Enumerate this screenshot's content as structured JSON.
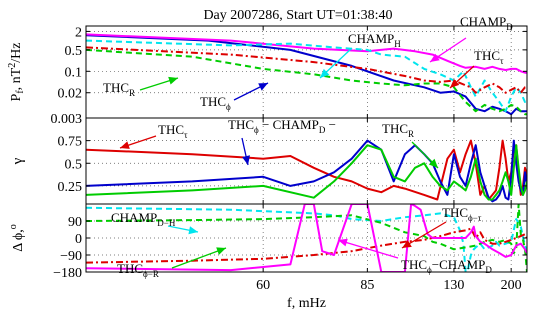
{
  "title": "Day 2007286, Start UT=01:38:40",
  "colors": {
    "blue": "#0000cc",
    "red": "#dd0000",
    "green": "#00cc00",
    "magenta": "#ff00ff",
    "cyan": "#00e5ee",
    "black": "#000000"
  },
  "chart_data": [
    {
      "type": "line",
      "panel": "power",
      "xlabel": "",
      "ylabel": "P_f, nT^2/Hz",
      "ylabel_main": "P",
      "ylabel_sub": "f",
      "ylabel_rest": ", nT",
      "ylabel_sup": "2",
      "ylabel_end": "/Hz",
      "yscale": "log",
      "xlim": [
        40,
        235
      ],
      "ylim": [
        0.003,
        3
      ],
      "yticks": [
        {
          "v": 2,
          "label": "2"
        },
        {
          "v": 0.5,
          "label": "0.5"
        },
        {
          "v": 0.1,
          "label": "0.1"
        },
        {
          "v": 0.02,
          "label": "0.02"
        },
        {
          "v": 0.003,
          "label": "0.003"
        }
      ],
      "grid": true,
      "series": [
        {
          "color": "blue",
          "dash": "solid",
          "x": [
            40,
            52,
            65,
            80,
            95,
            110,
            120,
            130,
            140,
            150,
            160,
            170,
            180,
            190,
            200,
            210,
            220,
            230,
            235
          ],
          "y": [
            1.5,
            1.0,
            0.5,
            0.15,
            0.05,
            0.03,
            0.02,
            0.022,
            0.015,
            0.006,
            0.005,
            0.007,
            0.006,
            0.005,
            0.004,
            0.006,
            0.005,
            0.005,
            0.005
          ]
        },
        {
          "color": "magenta",
          "dash": "solid",
          "x": [
            40,
            55,
            70,
            85,
            95,
            105,
            115,
            125,
            135,
            140,
            150,
            160,
            170,
            180,
            190,
            200,
            210,
            220,
            230,
            235
          ],
          "y": [
            1.6,
            1.0,
            0.55,
            0.45,
            0.55,
            0.45,
            0.35,
            0.22,
            0.15,
            0.13,
            0.14,
            0.12,
            0.14,
            0.12,
            0.11,
            0.12,
            0.12,
            0.1,
            0.09,
            0.09
          ]
        },
        {
          "color": "cyan",
          "dash": "dash",
          "x": [
            40,
            55,
            65,
            75,
            85,
            90,
            100,
            110,
            120,
            130,
            138,
            145,
            150,
            160,
            170,
            180,
            190,
            200,
            210,
            220,
            230,
            235
          ],
          "y": [
            1.0,
            0.7,
            0.8,
            0.6,
            0.5,
            0.35,
            0.3,
            0.12,
            0.08,
            0.05,
            0.1,
            0.03,
            0.015,
            0.05,
            0.02,
            0.01,
            0.005,
            0.015,
            0.03,
            0.02,
            0.01,
            0.01
          ]
        },
        {
          "color": "green",
          "dash": "dash",
          "x": [
            40,
            50,
            60,
            70,
            80,
            90,
            100,
            110,
            120,
            130,
            140,
            150,
            160,
            170,
            180,
            190,
            200,
            210,
            220,
            230,
            235
          ],
          "y": [
            0.5,
            0.3,
            0.12,
            0.08,
            0.05,
            0.04,
            0.035,
            0.04,
            0.04,
            0.03,
            0.01,
            0.005,
            0.008,
            0.006,
            0.005,
            0.006,
            0.008,
            0.007,
            0.005,
            0.004,
            0.004
          ]
        },
        {
          "color": "red",
          "dash": "dashdot",
          "x": [
            40,
            55,
            70,
            85,
            100,
            110,
            120,
            130,
            140,
            145,
            150,
            160,
            170,
            180,
            190,
            200,
            210,
            220,
            230,
            235
          ],
          "y": [
            0.6,
            0.35,
            0.2,
            0.12,
            0.07,
            0.05,
            0.045,
            0.05,
            0.035,
            0.03,
            0.02,
            0.03,
            0.04,
            0.03,
            0.02,
            0.025,
            0.03,
            0.02,
            0.03,
            0.03
          ]
        }
      ],
      "annotations": [
        {
          "label": "CHAMP",
          "sub": "D",
          "color": "magenta"
        },
        {
          "label": "CHAMP",
          "sub": "H",
          "color": "cyan"
        },
        {
          "label": "THC",
          "sub": "τ",
          "color": "red"
        },
        {
          "label": "THC",
          "sub": "R",
          "color": "green"
        },
        {
          "label": "THC",
          "sub": "ϕ",
          "color": "blue"
        }
      ]
    },
    {
      "type": "line",
      "panel": "coherence",
      "xlabel": "",
      "ylabel": "γ",
      "xlim": [
        40,
        235
      ],
      "ylim": [
        0.05,
        1.0
      ],
      "yticks": [
        {
          "v": 0.75,
          "label": "0.75"
        },
        {
          "v": 0.5,
          "label": "0.5"
        },
        {
          "v": 0.25,
          "label": "0.25"
        }
      ],
      "grid": true,
      "series": [
        {
          "color": "red",
          "x": [
            40,
            50,
            60,
            65,
            70,
            75,
            80,
            85,
            90,
            95,
            100,
            110,
            118,
            125,
            130,
            135,
            140,
            145,
            150,
            155,
            160,
            165,
            170,
            175,
            180,
            185,
            190,
            195,
            200,
            205,
            210,
            215,
            220,
            225,
            230,
            235
          ],
          "y": [
            0.65,
            0.6,
            0.55,
            0.58,
            0.45,
            0.35,
            0.3,
            0.22,
            0.18,
            0.25,
            0.22,
            0.15,
            0.1,
            0.55,
            0.65,
            0.4,
            0.6,
            0.75,
            0.5,
            0.15,
            0.25,
            0.1,
            0.15,
            0.2,
            0.45,
            0.75,
            0.55,
            0.3,
            0.4,
            0.65,
            0.7,
            0.4,
            0.15,
            0.25,
            0.45,
            0.35
          ]
        },
        {
          "color": "blue",
          "x": [
            40,
            50,
            60,
            65,
            70,
            75,
            80,
            85,
            90,
            95,
            100,
            105,
            110,
            115,
            120,
            125,
            130,
            135,
            140,
            145,
            150,
            155,
            160,
            165,
            170,
            175,
            180,
            185,
            190,
            195,
            200,
            205,
            210,
            215,
            220,
            225,
            230,
            235
          ],
          "y": [
            0.25,
            0.3,
            0.35,
            0.25,
            0.3,
            0.4,
            0.55,
            0.75,
            0.65,
            0.3,
            0.6,
            0.7,
            0.6,
            0.5,
            0.3,
            0.15,
            0.6,
            0.35,
            0.25,
            0.5,
            0.7,
            0.4,
            0.25,
            0.12,
            0.08,
            0.1,
            0.15,
            0.25,
            0.12,
            0.1,
            0.35,
            0.75,
            0.5,
            0.3,
            0.2,
            0.15,
            0.4,
            0.25
          ]
        },
        {
          "color": "green",
          "x": [
            40,
            50,
            60,
            70,
            75,
            80,
            85,
            90,
            95,
            100,
            105,
            110,
            115,
            120,
            125,
            130,
            135,
            140,
            145,
            150,
            155,
            160,
            165,
            170,
            175,
            180,
            185,
            190,
            195,
            200,
            205,
            210,
            215,
            220,
            225,
            230,
            235
          ],
          "y": [
            0.15,
            0.2,
            0.25,
            0.12,
            0.3,
            0.5,
            0.7,
            0.65,
            0.35,
            0.3,
            0.45,
            0.5,
            0.35,
            0.25,
            0.2,
            0.3,
            0.25,
            0.2,
            0.35,
            0.55,
            0.3,
            0.15,
            0.1,
            0.1,
            0.15,
            0.2,
            0.3,
            0.4,
            0.3,
            0.15,
            0.45,
            0.7,
            0.45,
            0.25,
            0.15,
            0.2,
            0.3
          ]
        }
      ],
      "annotations": [
        {
          "label": "THC",
          "sub": "τ",
          "color": "red"
        },
        {
          "label": "THC",
          "sub": "ϕ",
          "suffix": " − CHAMP",
          "suffix_sub": "D",
          "tail": " −",
          "color": "blue"
        },
        {
          "label": "THC",
          "sub": "R",
          "color": "green"
        }
      ]
    },
    {
      "type": "line",
      "panel": "phase",
      "xlabel": "f, mHz",
      "ylabel": "Δ ϕ, °",
      "ylabel_main": "Δ ϕ,",
      "ylabel_sup": "o",
      "xscale": "reciprocal",
      "xlim": [
        40,
        235
      ],
      "ylim": [
        -180,
        180
      ],
      "xticks": [
        {
          "v": 60,
          "label": "60"
        },
        {
          "v": 85,
          "label": "85"
        },
        {
          "v": 130,
          "label": "130"
        },
        {
          "v": 200,
          "label": "200"
        }
      ],
      "yticks": [
        {
          "v": 90,
          "label": "90"
        },
        {
          "v": 0,
          "label": "0"
        },
        {
          "v": -90,
          "label": "−90"
        },
        {
          "v": -180,
          "label": "−180"
        }
      ],
      "grid": true,
      "series": [
        {
          "color": "cyan",
          "dash": "dash",
          "x": [
            40,
            55,
            70,
            75,
            80,
            90,
            100,
            110,
            120,
            130,
            135,
            138,
            140,
            142,
            145,
            148,
            150,
            155,
            160,
            170,
            175,
            180,
            190,
            200,
            210,
            220,
            230,
            235
          ],
          "y": [
            160,
            150,
            130,
            120,
            100,
            90,
            110,
            120,
            130,
            110,
            40,
            -30,
            -180,
            -170,
            -90,
            -60,
            -50,
            -30,
            -60,
            -40,
            -20,
            -40,
            -30,
            -20,
            100,
            60,
            -40,
            -80
          ]
        },
        {
          "color": "green",
          "dash": "dash",
          "x": [
            40,
            50,
            60,
            70,
            80,
            90,
            100,
            110,
            115,
            120,
            130,
            140,
            150,
            160,
            170,
            180,
            190,
            200,
            205,
            210,
            215,
            220,
            225,
            230,
            235
          ],
          "y": [
            90,
            95,
            100,
            110,
            120,
            80,
            30,
            10,
            -20,
            -30,
            -60,
            -50,
            -40,
            -20,
            -10,
            -20,
            -10,
            -30,
            -80,
            -60,
            180,
            20,
            -10,
            -60,
            -180
          ]
        },
        {
          "color": "red",
          "dash": "dashdot",
          "x": [
            40,
            50,
            60,
            70,
            80,
            90,
            100,
            110,
            120,
            130,
            140,
            145,
            150,
            155,
            160,
            170,
            180,
            190,
            200,
            210,
            220,
            230,
            235
          ],
          "y": [
            -130,
            -120,
            -110,
            -90,
            -70,
            -40,
            -20,
            -10,
            10,
            30,
            40,
            50,
            0,
            30,
            -10,
            -30,
            -30,
            -20,
            -10,
            0,
            10,
            20,
            0
          ]
        },
        {
          "color": "magenta",
          "dash": "solid",
          "x": [
            40,
            55,
            65,
            68,
            70,
            72,
            75,
            80,
            85,
            90,
            100,
            103,
            105,
            108,
            112,
            115,
            125,
            135,
            140,
            145,
            148,
            150,
            155,
            160,
            170,
            180,
            190,
            200,
            210,
            220,
            230,
            235
          ],
          "y": [
            -160,
            -170,
            -140,
            180,
            180,
            -70,
            -90,
            180,
            180,
            -180,
            -180,
            180,
            170,
            150,
            20,
            0,
            0,
            0,
            0,
            30,
            60,
            10,
            -20,
            -30,
            -60,
            -80,
            -100,
            -90,
            -40,
            -30,
            -60,
            -80
          ]
        }
      ],
      "annotations": [
        {
          "label": "CHAMP",
          "sub": "D−H",
          "color": "cyan"
        },
        {
          "label": "THC",
          "sub": "ϕ−R",
          "color": "green"
        },
        {
          "label": "THC",
          "sub": "ϕ",
          "suffix": "−CHAMP",
          "suffix_sub": "D",
          "color": "magenta"
        },
        {
          "label": "THC",
          "sub": "ϕ−τ",
          "color": "red"
        }
      ]
    }
  ]
}
